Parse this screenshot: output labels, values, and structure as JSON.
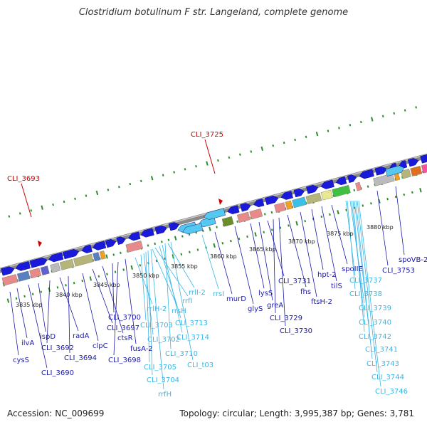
{
  "title": "Clostridium botulinum F str. Langeland, complete genome",
  "footer": {
    "accession": "Accession: NC_009699",
    "summary": "Topology: circular; Length: 3,995,387 bp; Genes: 3,781"
  },
  "colors": {
    "gene_forward": "#1a1adb",
    "gene_rna": "#55c8f0",
    "label_dark": "#1a1aa8",
    "label_light": "#3ab6e6",
    "marker": "#cc0000",
    "tick": "#2e8b2e",
    "backbone": "#8a8a8a"
  },
  "markers": [
    {
      "label": "CLI_3693"
    },
    {
      "label": "CLI_3725"
    }
  ],
  "scale_labels": [
    "3835 kbp",
    "3840 kbp",
    "3845 kbp",
    "3850 kbp",
    "3855 kbp",
    "3860 kbp",
    "3865 kbp",
    "3870 kbp",
    "3875 kbp",
    "3880 kbp"
  ],
  "gene_labels": [
    {
      "text": "cysS",
      "style": "dark"
    },
    {
      "text": "ilvA",
      "style": "dark"
    },
    {
      "text": "CLI_3690",
      "style": "dark"
    },
    {
      "text": "ispD",
      "style": "dark"
    },
    {
      "text": "CLI_3692",
      "style": "dark"
    },
    {
      "text": "radA",
      "style": "dark"
    },
    {
      "text": "CLI_3694",
      "style": "dark"
    },
    {
      "text": "clpC",
      "style": "dark"
    },
    {
      "text": "CLI_3697",
      "style": "dark"
    },
    {
      "text": "ctsR",
      "style": "dark"
    },
    {
      "text": "CLI_3700",
      "style": "dark"
    },
    {
      "text": "CLI_3698",
      "style": "dark"
    },
    {
      "text": "fusA-2",
      "style": "dark"
    },
    {
      "text": "rrlH-2",
      "style": "light"
    },
    {
      "text": "CLI_3703",
      "style": "light"
    },
    {
      "text": "CLI_3702",
      "style": "light"
    },
    {
      "text": "CLI_3705",
      "style": "light"
    },
    {
      "text": "CLI_3704",
      "style": "light"
    },
    {
      "text": "rrfH",
      "style": "light"
    },
    {
      "text": "rrsH",
      "style": "light"
    },
    {
      "text": "rrfI",
      "style": "light"
    },
    {
      "text": "CLI_3713",
      "style": "light"
    },
    {
      "text": "CLI_3714",
      "style": "light"
    },
    {
      "text": "CLI_3710",
      "style": "light"
    },
    {
      "text": "rrlI-2",
      "style": "light"
    },
    {
      "text": "CLI_t03",
      "style": "light"
    },
    {
      "text": "rrsI",
      "style": "light"
    },
    {
      "text": "murD",
      "style": "dark"
    },
    {
      "text": "glyS",
      "style": "dark"
    },
    {
      "text": "lysS",
      "style": "dark"
    },
    {
      "text": "greA",
      "style": "dark"
    },
    {
      "text": "CLI_3731",
      "style": "dark"
    },
    {
      "text": "CLI_3729",
      "style": "dark"
    },
    {
      "text": "CLI_3730",
      "style": "dark"
    },
    {
      "text": "fhs",
      "style": "dark"
    },
    {
      "text": "ftsH-2",
      "style": "dark"
    },
    {
      "text": "hpt-2",
      "style": "dark"
    },
    {
      "text": "tilS",
      "style": "dark"
    },
    {
      "text": "spoIIE",
      "style": "dark"
    },
    {
      "text": "CLI_3737",
      "style": "light"
    },
    {
      "text": "CLI_3738",
      "style": "light"
    },
    {
      "text": "CLI_3739",
      "style": "light"
    },
    {
      "text": "CLI_3740",
      "style": "light"
    },
    {
      "text": "CLI_3742",
      "style": "light"
    },
    {
      "text": "CLI_3741",
      "style": "light"
    },
    {
      "text": "CLI_3743",
      "style": "light"
    },
    {
      "text": "CLI_3744",
      "style": "light"
    },
    {
      "text": "CLI_3746",
      "style": "light"
    },
    {
      "text": "CLI_3753",
      "style": "dark"
    },
    {
      "text": "spoVB-2",
      "style": "dark"
    }
  ]
}
